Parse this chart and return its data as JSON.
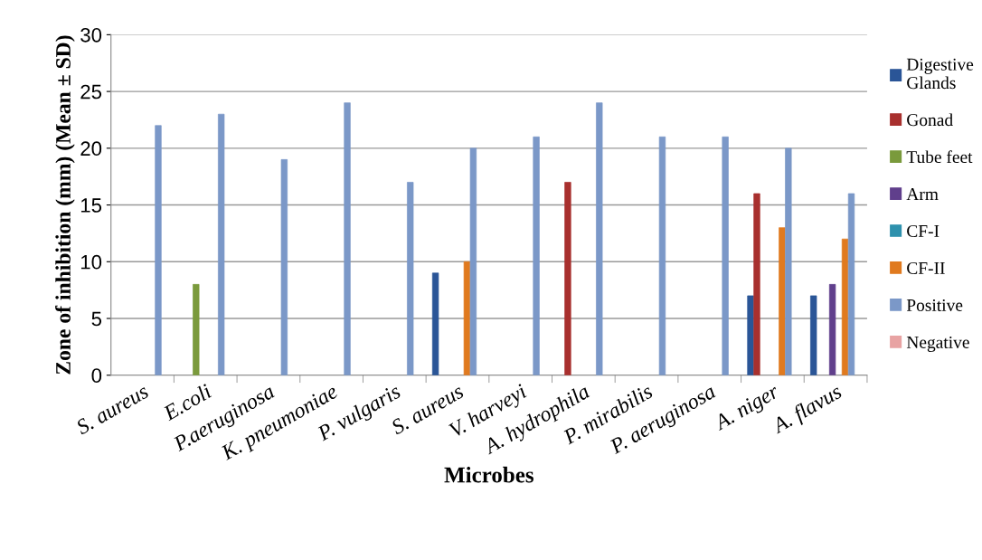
{
  "chart_data": {
    "type": "bar",
    "xlabel": "Microbes",
    "ylabel": "Zone of inhibition (mm) (Mean ± SD)",
    "categories": [
      "S. aureus",
      "E.coli",
      "P.aeruginosa",
      "K. pneumoniae",
      "P. vulgaris",
      "S. aureus",
      "V. harveyi",
      "A. hydrophila",
      "P. mirabilis",
      "P. aeruginosa",
      "A. niger",
      "A. flavus"
    ],
    "series": [
      {
        "name": "Digestive Glands",
        "color": "#2a5597",
        "values": [
          null,
          null,
          null,
          null,
          null,
          9,
          null,
          null,
          null,
          null,
          7,
          7
        ]
      },
      {
        "name": "Gonad",
        "color": "#a8302e",
        "values": [
          null,
          null,
          null,
          null,
          null,
          null,
          null,
          17,
          null,
          null,
          16,
          null
        ]
      },
      {
        "name": "Tube feet",
        "color": "#7a9a3c",
        "values": [
          null,
          8,
          null,
          null,
          null,
          null,
          null,
          null,
          null,
          null,
          null,
          null
        ]
      },
      {
        "name": "Arm",
        "color": "#603f8c",
        "values": [
          null,
          null,
          null,
          null,
          null,
          null,
          null,
          null,
          null,
          null,
          null,
          8
        ]
      },
      {
        "name": "CF-I",
        "color": "#2e91ad",
        "values": [
          null,
          null,
          null,
          null,
          null,
          null,
          null,
          null,
          null,
          null,
          null,
          null
        ]
      },
      {
        "name": "CF-II",
        "color": "#e07a1f",
        "values": [
          null,
          null,
          null,
          null,
          null,
          10,
          null,
          null,
          null,
          null,
          13,
          12
        ]
      },
      {
        "name": "Positive",
        "color": "#7b98c8",
        "values": [
          22,
          23,
          19,
          24,
          17,
          20,
          21,
          24,
          21,
          21,
          20,
          16
        ]
      },
      {
        "name": "Negative",
        "color": "#e8a3a3",
        "values": [
          null,
          null,
          null,
          null,
          null,
          null,
          null,
          null,
          null,
          null,
          null,
          null
        ]
      }
    ],
    "ylim": [
      0,
      30
    ],
    "yticks": [
      0,
      5,
      10,
      15,
      20,
      25,
      30
    ],
    "grid": "y",
    "legend": "right"
  }
}
